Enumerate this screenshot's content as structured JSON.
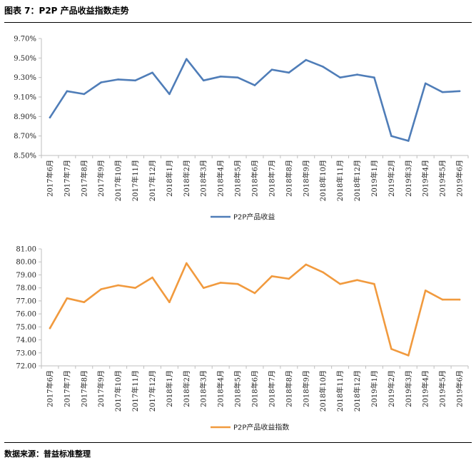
{
  "figure": {
    "title": "图表 7：P2P 产品收益指数走势",
    "source": "数据来源：普益标准整理"
  },
  "chart_data": [
    {
      "type": "line",
      "categories": [
        "2017年6月",
        "2017年7月",
        "2017年8月",
        "2017年9月",
        "2017年10月",
        "2017年11月",
        "2017年12月",
        "2018年1月",
        "2018年2月",
        "2018年3月",
        "2018年4月",
        "2018年5月",
        "2018年6月",
        "2018年7月",
        "2018年8月",
        "2018年9月",
        "2018年10月",
        "2018年11月",
        "2018年12月",
        "2019年1月",
        "2019年2月",
        "2019年3月",
        "2019年4月",
        "2019年5月",
        "2019年6月"
      ],
      "series": [
        {
          "name": "P2P产品收益",
          "values": [
            8.89,
            9.16,
            9.13,
            9.25,
            9.28,
            9.27,
            9.35,
            9.13,
            9.49,
            9.27,
            9.31,
            9.3,
            9.22,
            9.38,
            9.35,
            9.48,
            9.41,
            9.3,
            9.33,
            9.3,
            8.7,
            8.65,
            9.24,
            9.15,
            9.16
          ],
          "color": "#4F7DB8"
        }
      ],
      "yticks": [
        "8.50%",
        "8.70%",
        "8.90%",
        "9.10%",
        "9.30%",
        "9.50%",
        "9.70%"
      ],
      "ylim": [
        8.5,
        9.7
      ],
      "title": "",
      "xlabel": "",
      "ylabel": "",
      "grid": false,
      "legend": "bottom-center"
    },
    {
      "type": "line",
      "categories": [
        "2017年6月",
        "2017年7月",
        "2017年8月",
        "2017年9月",
        "2017年10月",
        "2017年11月",
        "2017年12月",
        "2018年1月",
        "2018年2月",
        "2018年3月",
        "2018年4月",
        "2018年5月",
        "2018年6月",
        "2018年7月",
        "2018年8月",
        "2018年9月",
        "2018年10月",
        "2018年11月",
        "2018年12月",
        "2019年1月",
        "2019年2月",
        "2019年3月",
        "2019年4月",
        "2019年5月",
        "2019年6月"
      ],
      "series": [
        {
          "name": "P2P产品收益指数",
          "values": [
            74.9,
            77.2,
            76.9,
            77.9,
            78.2,
            78.0,
            78.8,
            76.9,
            79.9,
            78.0,
            78.4,
            78.3,
            77.6,
            78.9,
            78.7,
            79.8,
            79.2,
            78.3,
            78.6,
            78.3,
            73.3,
            72.8,
            77.8,
            77.1,
            77.1
          ],
          "color": "#F19A3E"
        }
      ],
      "yticks": [
        "72.00",
        "73.00",
        "74.00",
        "75.00",
        "76.00",
        "77.00",
        "78.00",
        "79.00",
        "80.00",
        "81.00"
      ],
      "ylim": [
        72,
        81
      ],
      "title": "",
      "xlabel": "",
      "ylabel": "",
      "grid": false,
      "legend": "bottom-center"
    }
  ]
}
